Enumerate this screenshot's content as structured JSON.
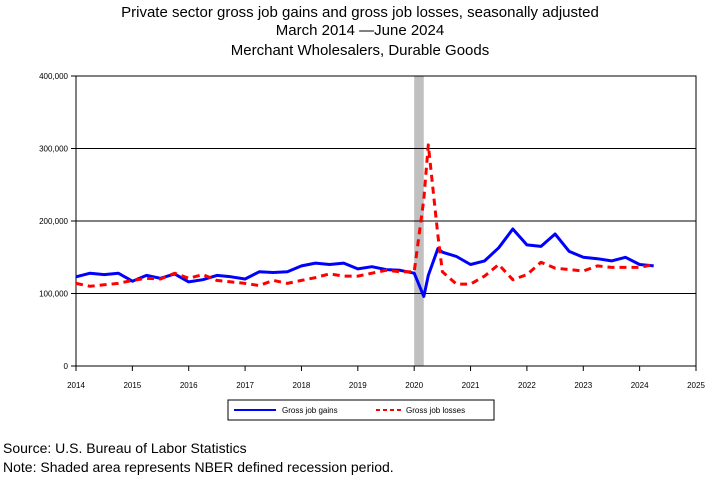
{
  "title_line1": "Private sector gross job gains and gross job losses, seasonally adjusted",
  "title_line2": "March 2014  —June 2024",
  "title_line3": "Merchant Wholesalers, Durable Goods",
  "source": "Source: U.S. Bureau of Labor Statistics",
  "note": "Note: Shaded area represents NBER defined recession period.",
  "colors": {
    "gains": "#0000ff",
    "losses": "#ff0000",
    "recession": "#c0c0c0"
  },
  "chart_data": {
    "type": "line",
    "xlim": [
      2014,
      2025
    ],
    "ylim": [
      0,
      400000
    ],
    "x_ticks": [
      2014,
      2015,
      2016,
      2017,
      2018,
      2019,
      2020,
      2021,
      2022,
      2023,
      2024,
      2025
    ],
    "x_tick_labels": [
      "2014",
      "2015",
      "2016",
      "2017",
      "2018",
      "2019",
      "2020",
      "2021",
      "2022",
      "2023",
      "2024",
      "2025"
    ],
    "y_ticks": [
      0,
      100000,
      200000,
      300000,
      400000
    ],
    "y_tick_labels": [
      "0",
      "100,000",
      "200,000",
      "300,000",
      "400,000"
    ],
    "grid": "horizontal",
    "legend_position": "bottom",
    "recession": [
      2020.0,
      2020.17
    ],
    "x": [
      2014.0,
      2014.25,
      2014.5,
      2014.75,
      2015.0,
      2015.25,
      2015.5,
      2015.75,
      2016.0,
      2016.25,
      2016.5,
      2016.75,
      2017.0,
      2017.25,
      2017.5,
      2017.75,
      2018.0,
      2018.25,
      2018.5,
      2018.75,
      2019.0,
      2019.25,
      2019.5,
      2019.75,
      2020.0,
      2020.17,
      2020.25,
      2020.42,
      2020.5,
      2020.75,
      2021.0,
      2021.25,
      2021.5,
      2021.75,
      2022.0,
      2022.25,
      2022.5,
      2022.75,
      2023.0,
      2023.25,
      2023.5,
      2023.75,
      2024.0,
      2024.25
    ],
    "series": [
      {
        "name": "Gross job gains",
        "values": [
          123000,
          128000,
          126000,
          128000,
          117000,
          125000,
          121000,
          127000,
          116000,
          119000,
          125000,
          123000,
          120000,
          130000,
          129000,
          130000,
          138000,
          142000,
          140000,
          142000,
          134000,
          137000,
          133000,
          132000,
          128000,
          96000,
          125000,
          162000,
          157000,
          151000,
          140000,
          145000,
          163000,
          189000,
          167000,
          165000,
          182000,
          158000,
          150000,
          148000,
          145000,
          150000,
          140000,
          138000
        ]
      },
      {
        "name": "Gross job losses",
        "values": [
          114000,
          110000,
          112000,
          114000,
          118000,
          121000,
          120000,
          128000,
          121000,
          126000,
          118000,
          116000,
          114000,
          111000,
          118000,
          114000,
          118000,
          122000,
          127000,
          124000,
          124000,
          128000,
          132000,
          130000,
          130000,
          230000,
          305000,
          180000,
          130000,
          113000,
          113000,
          124000,
          140000,
          119000,
          126000,
          143000,
          135000,
          133000,
          131000,
          138000,
          136000,
          136000,
          136000,
          140000
        ]
      }
    ]
  }
}
